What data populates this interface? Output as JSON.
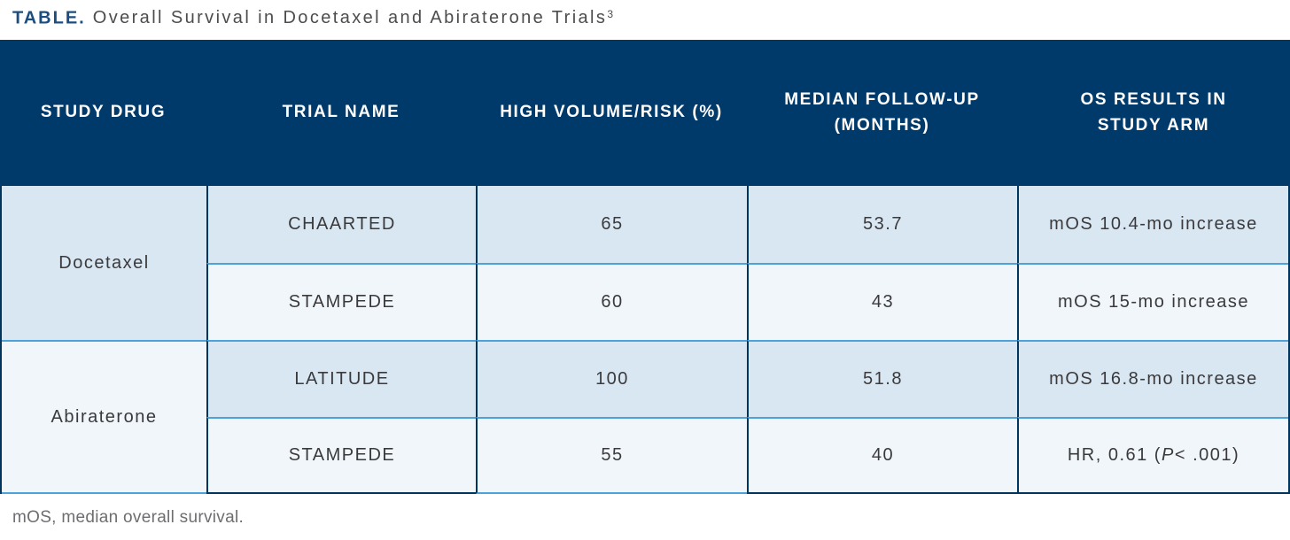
{
  "title": {
    "label": "TABLE.",
    "text": "Overall Survival in Docetaxel and Abiraterone Trials",
    "citation": "3"
  },
  "footnote": "mOS, median overall survival.",
  "table": {
    "columns": [
      {
        "id": "study-drug",
        "lines": [
          "STUDY DRUG"
        ]
      },
      {
        "id": "trial-name",
        "lines": [
          "TRIAL NAME"
        ]
      },
      {
        "id": "high-volume-risk",
        "lines": [
          "HIGH VOLUME/RISK (%)"
        ]
      },
      {
        "id": "median-follow-up",
        "lines": [
          "MEDIAN FOLLOW-UP",
          "(MONTHS)"
        ]
      },
      {
        "id": "os-results",
        "lines": [
          "OS RESULTS IN",
          "STUDY ARM"
        ]
      }
    ],
    "groups": [
      {
        "drug": "Docetaxel",
        "drug_shade": "blue",
        "rows": [
          {
            "shade": "blue",
            "trial": "CHAARTED",
            "high_volume_risk": "65",
            "median_follow_up": "53.7",
            "os_results": [
              {
                "t": "mOS 10.4-mo increase"
              }
            ]
          },
          {
            "shade": "pale",
            "trial": "STAMPEDE",
            "high_volume_risk": "60",
            "median_follow_up": "43",
            "os_results": [
              {
                "t": "mOS 15-mo increase"
              }
            ]
          }
        ]
      },
      {
        "drug": "Abiraterone",
        "drug_shade": "pale",
        "rows": [
          {
            "shade": "blue",
            "trial": "LATITUDE",
            "high_volume_risk": "100",
            "median_follow_up": "51.8",
            "os_results": [
              {
                "t": "mOS 16.8-mo increase"
              }
            ]
          },
          {
            "shade": "pale",
            "trial": "STAMPEDE",
            "high_volume_risk": "55",
            "median_follow_up": "40",
            "os_results": [
              {
                "t": "HR, 0.61 ("
              },
              {
                "t": "P",
                "italic": true
              },
              {
                "t": " < .001)"
              }
            ]
          }
        ]
      }
    ]
  },
  "colors": {
    "header_bg": "#003a6b",
    "border_navy": "#00365e",
    "border_light": "#4da3d9",
    "row_blue": "#d9e7f3",
    "row_pale": "#f1f6fa",
    "title_label": "#1c4d80",
    "title_text": "#4d4d4f",
    "body_text": "#3a3a3c",
    "footnote_color": "#6d6e71",
    "header_text": "#ffffff"
  }
}
